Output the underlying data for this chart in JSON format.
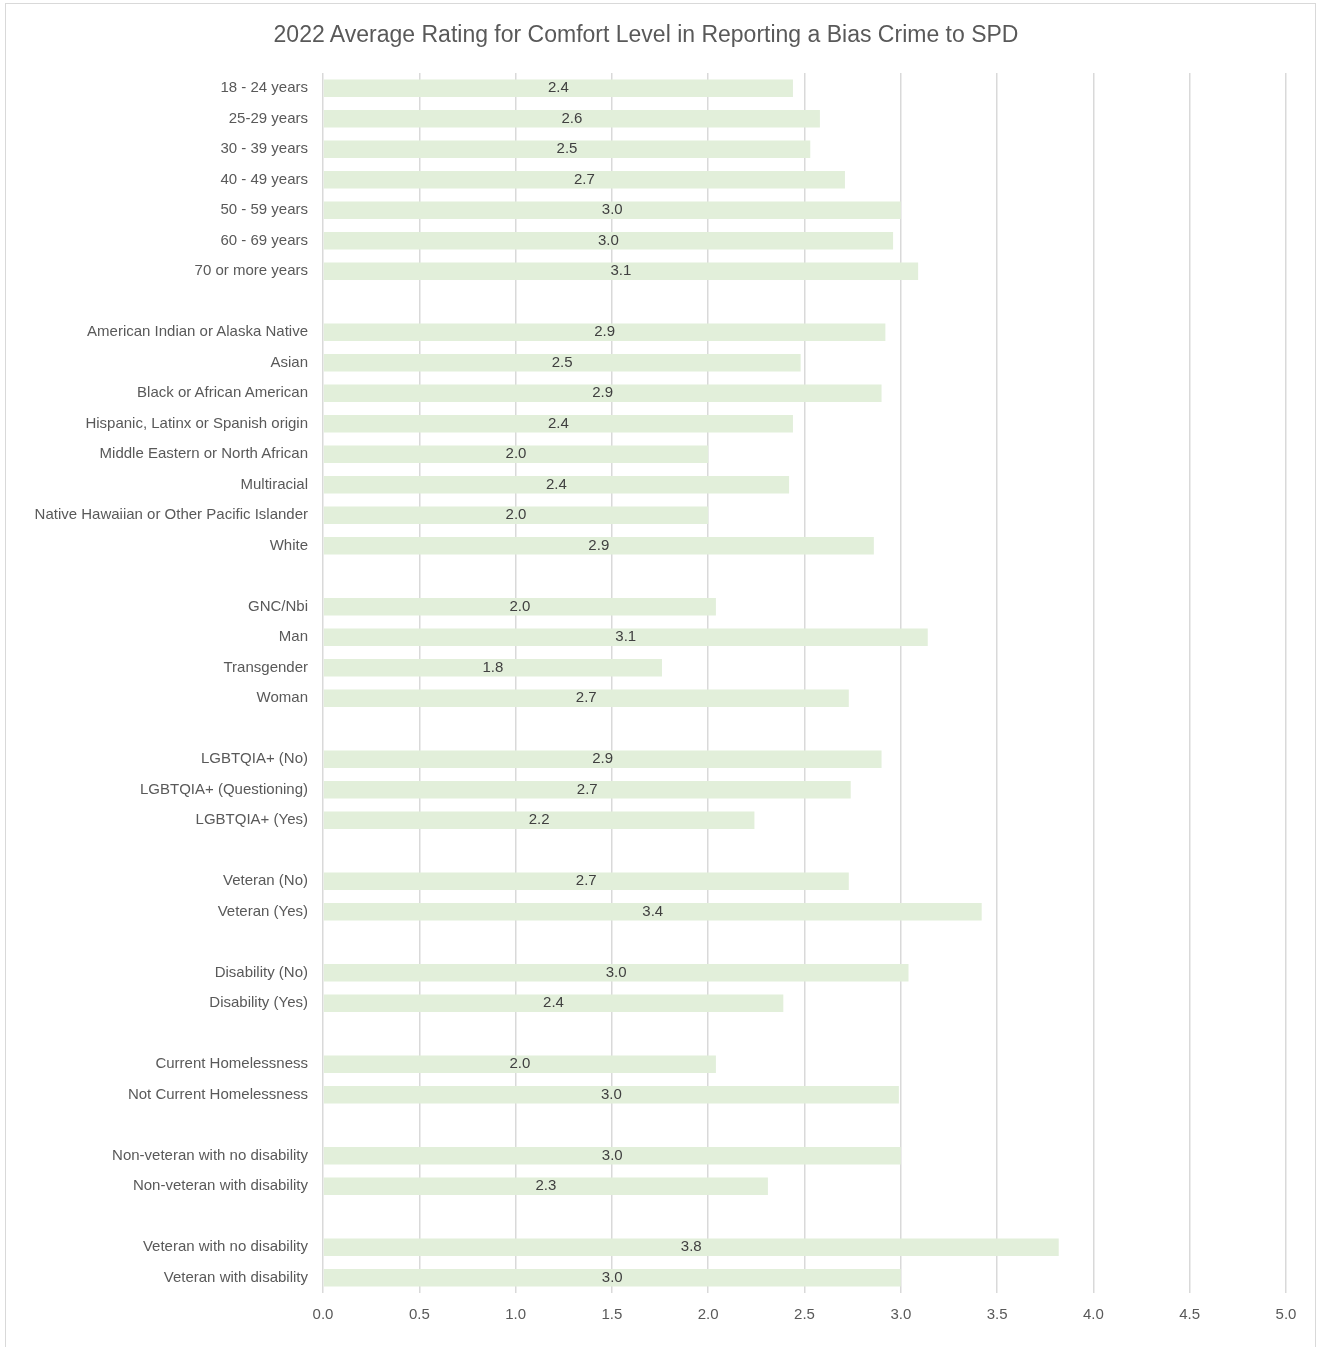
{
  "chart_data": {
    "type": "bar",
    "orientation": "horizontal",
    "title": "2022 Average Rating for Comfort Level in Reporting a Bias Crime to SPD",
    "categories": [
      "18 - 24 years",
      "25-29 years",
      "30 - 39 years",
      "40 - 49 years",
      "50 - 59 years",
      "60 - 69 years",
      "70 or more years",
      null,
      "American Indian or Alaska Native",
      "Asian",
      "Black or African American",
      "Hispanic, Latinx or Spanish origin",
      "Middle Eastern or North African",
      "Multiracial",
      "Native Hawaiian or Other Pacific Islander",
      "White",
      null,
      "GNC/Nbi",
      "Man",
      "Transgender",
      "Woman",
      null,
      "LGBTQIA+ (No)",
      "LGBTQIA+ (Questioning)",
      "LGBTQIA+ (Yes)",
      null,
      "Veteran (No)",
      "Veteran (Yes)",
      null,
      "Disability (No)",
      "Disability (Yes)",
      null,
      "Current Homelessness",
      "Not Current Homelessness",
      null,
      "Non-veteran with no disability",
      "Non-veteran with disability",
      null,
      "Veteran with no disability",
      "Veteran with disability"
    ],
    "values": [
      2.44,
      2.58,
      2.53,
      2.71,
      3.0,
      2.96,
      3.09,
      null,
      2.92,
      2.48,
      2.9,
      2.44,
      2.0,
      2.42,
      2.0,
      2.86,
      null,
      2.04,
      3.14,
      1.76,
      2.73,
      null,
      2.9,
      2.74,
      2.24,
      null,
      2.73,
      3.42,
      null,
      3.04,
      2.39,
      null,
      2.04,
      2.99,
      null,
      3.0,
      2.31,
      null,
      3.82,
      3.0
    ],
    "value_labels": [
      "2.4",
      "2.6",
      "2.5",
      "2.7",
      "3.0",
      "3.0",
      "3.1",
      null,
      "2.9",
      "2.5",
      "2.9",
      "2.4",
      "2.0",
      "2.4",
      "2.0",
      "2.9",
      null,
      "2.0",
      "3.1",
      "1.8",
      "2.7",
      null,
      "2.9",
      "2.7",
      "2.2",
      null,
      "2.7",
      "3.4",
      null,
      "3.0",
      "2.4",
      null,
      "2.0",
      "3.0",
      null,
      "3.0",
      "2.3",
      null,
      "3.8",
      "3.0"
    ],
    "color": "#e2efda",
    "xlim": [
      0,
      5
    ],
    "xticks": [
      {
        "value": 0,
        "label": "0.0"
      },
      0.5,
      {
        "value": 1,
        "label": "1.0"
      },
      1.5,
      {
        "value": 2,
        "label": "2.0"
      },
      2.5,
      {
        "value": 3,
        "label": "3.0"
      },
      3.5,
      {
        "value": 4,
        "label": "4.0"
      },
      4.5,
      {
        "value": 5,
        "label": "5.0"
      }
    ],
    "grid": "x"
  }
}
